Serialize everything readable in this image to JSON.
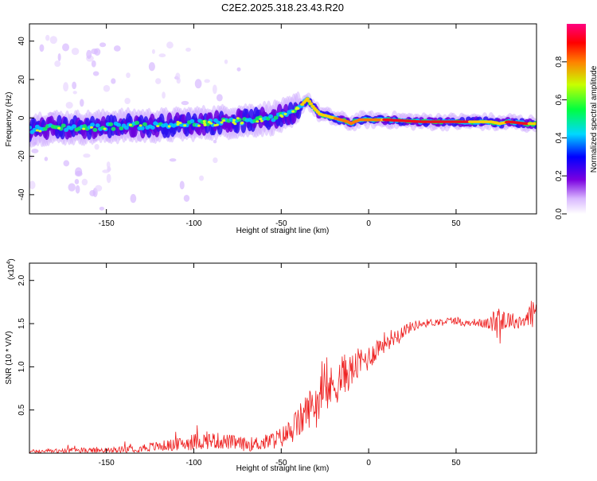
{
  "title": "C2E2.2025.318.23.43.R20",
  "chart_data": [
    {
      "type": "heatmap",
      "title": "C2E2.2025.318.23.43.R20",
      "xlabel": "Height of straight line (km)",
      "ylabel": "Frequency (Hz)",
      "xlim": [
        -194,
        96
      ],
      "ylim": [
        -50,
        49
      ],
      "xticks": [
        -150,
        -100,
        -50,
        0,
        50
      ],
      "yticks": [
        -40,
        -20,
        0,
        20,
        40
      ],
      "ridge": {
        "x": [
          -194,
          -180,
          -160,
          -140,
          -120,
          -100,
          -80,
          -65,
          -55,
          -45,
          -40,
          -37,
          -35,
          -32,
          -28,
          -24,
          -20,
          -16,
          -12,
          -10,
          -8,
          -5,
          0,
          10,
          30,
          50,
          70,
          75,
          80,
          90,
          96
        ],
        "y": [
          -6,
          -5,
          -5,
          -4,
          -4,
          -3,
          -2,
          -1,
          0,
          2,
          5,
          8,
          10,
          6,
          2,
          1,
          0,
          -1,
          -2,
          -3,
          -2,
          -1,
          -1,
          -1,
          -2,
          -2,
          -2,
          -3,
          -2,
          -3,
          -3
        ]
      },
      "colorbar": {
        "label": "Normalized spectral amplitude",
        "ticks": [
          "0.0",
          "0.2",
          "0.4",
          "0.6",
          "0.8"
        ],
        "range": [
          0,
          1
        ]
      }
    },
    {
      "type": "line",
      "xlabel": "Height of straight line (km)",
      "ylabel": "SNR (10 * V/V)",
      "exponent_label": "(x10",
      "exponent_power": "4",
      "exponent_close": ")",
      "xlim": [
        -194,
        96
      ],
      "ylim": [
        0,
        2.2
      ],
      "xticks": [
        -150,
        -100,
        -50,
        0,
        50
      ],
      "yticks": [
        "0.5",
        "1.0",
        "1.5",
        "2.0"
      ],
      "color": "#ee2020",
      "series": [
        {
          "name": "SNR",
          "x": [
            -194,
            -170,
            -150,
            -130,
            -110,
            -100,
            -90,
            -80,
            -70,
            -60,
            -50,
            -45,
            -40,
            -35,
            -30,
            -25,
            -20,
            -15,
            -10,
            -5,
            0,
            5,
            10,
            15,
            20,
            25,
            30,
            40,
            50,
            55,
            60,
            65,
            70,
            75,
            80,
            85,
            90,
            96
          ],
          "y": [
            0.02,
            0.03,
            0.03,
            0.06,
            0.1,
            0.13,
            0.15,
            0.13,
            0.1,
            0.12,
            0.18,
            0.25,
            0.35,
            0.5,
            0.6,
            0.7,
            0.78,
            0.9,
            0.95,
            1.05,
            1.1,
            1.22,
            1.3,
            1.35,
            1.42,
            1.47,
            1.5,
            1.52,
            1.54,
            1.5,
            1.52,
            1.5,
            1.5,
            1.55,
            1.55,
            1.52,
            1.55,
            1.65
          ],
          "noise": [
            0.02,
            0.03,
            0.03,
            0.05,
            0.07,
            0.1,
            0.1,
            0.09,
            0.08,
            0.09,
            0.12,
            0.15,
            0.2,
            0.22,
            0.24,
            0.25,
            0.26,
            0.25,
            0.2,
            0.18,
            0.15,
            0.13,
            0.12,
            0.1,
            0.08,
            0.06,
            0.05,
            0.04,
            0.05,
            0.04,
            0.04,
            0.05,
            0.08,
            0.3,
            0.1,
            0.08,
            0.12,
            0.2
          ]
        }
      ]
    }
  ]
}
